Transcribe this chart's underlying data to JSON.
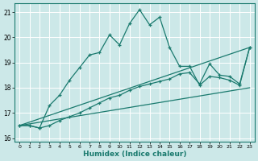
{
  "xlabel": "Humidex (Indice chaleur)",
  "background_color": "#cce8e8",
  "line_color": "#1a7a6e",
  "grid_color": "#ffffff",
  "xlim": [
    -0.5,
    23.5
  ],
  "ylim": [
    15.85,
    21.35
  ],
  "yticks": [
    16,
    17,
    18,
    19,
    20,
    21
  ],
  "xticks": [
    0,
    1,
    2,
    3,
    4,
    5,
    6,
    7,
    8,
    9,
    10,
    11,
    12,
    13,
    14,
    15,
    16,
    17,
    18,
    19,
    20,
    21,
    22,
    23
  ],
  "curve1_x": [
    0,
    1,
    2,
    3,
    4,
    5,
    6,
    7,
    8,
    9,
    10,
    11,
    12,
    13,
    14,
    15,
    16,
    17,
    18,
    19,
    20,
    21,
    22,
    23
  ],
  "curve1_y": [
    16.5,
    16.5,
    16.4,
    17.3,
    17.7,
    18.3,
    18.8,
    19.3,
    19.4,
    20.1,
    19.7,
    20.55,
    21.1,
    20.5,
    20.8,
    19.6,
    18.85,
    18.85,
    18.1,
    18.45,
    18.4,
    18.3,
    18.1,
    19.6
  ],
  "curve2_x": [
    0,
    1,
    2,
    3,
    4,
    5,
    6,
    7,
    8,
    9,
    10,
    11,
    12,
    13,
    14,
    15,
    16,
    17,
    18,
    19,
    20,
    21,
    22,
    23
  ],
  "curve2_y": [
    16.5,
    16.5,
    16.4,
    16.5,
    16.7,
    16.85,
    17.0,
    17.2,
    17.4,
    17.6,
    17.7,
    17.9,
    18.05,
    18.15,
    18.25,
    18.35,
    18.55,
    18.6,
    18.15,
    18.95,
    18.5,
    18.45,
    18.15,
    19.6
  ],
  "line_straight_upper": [
    [
      0,
      16.5
    ],
    [
      23,
      19.6
    ]
  ],
  "line_straight_lower": [
    [
      0,
      16.5
    ],
    [
      23,
      18.0
    ]
  ]
}
